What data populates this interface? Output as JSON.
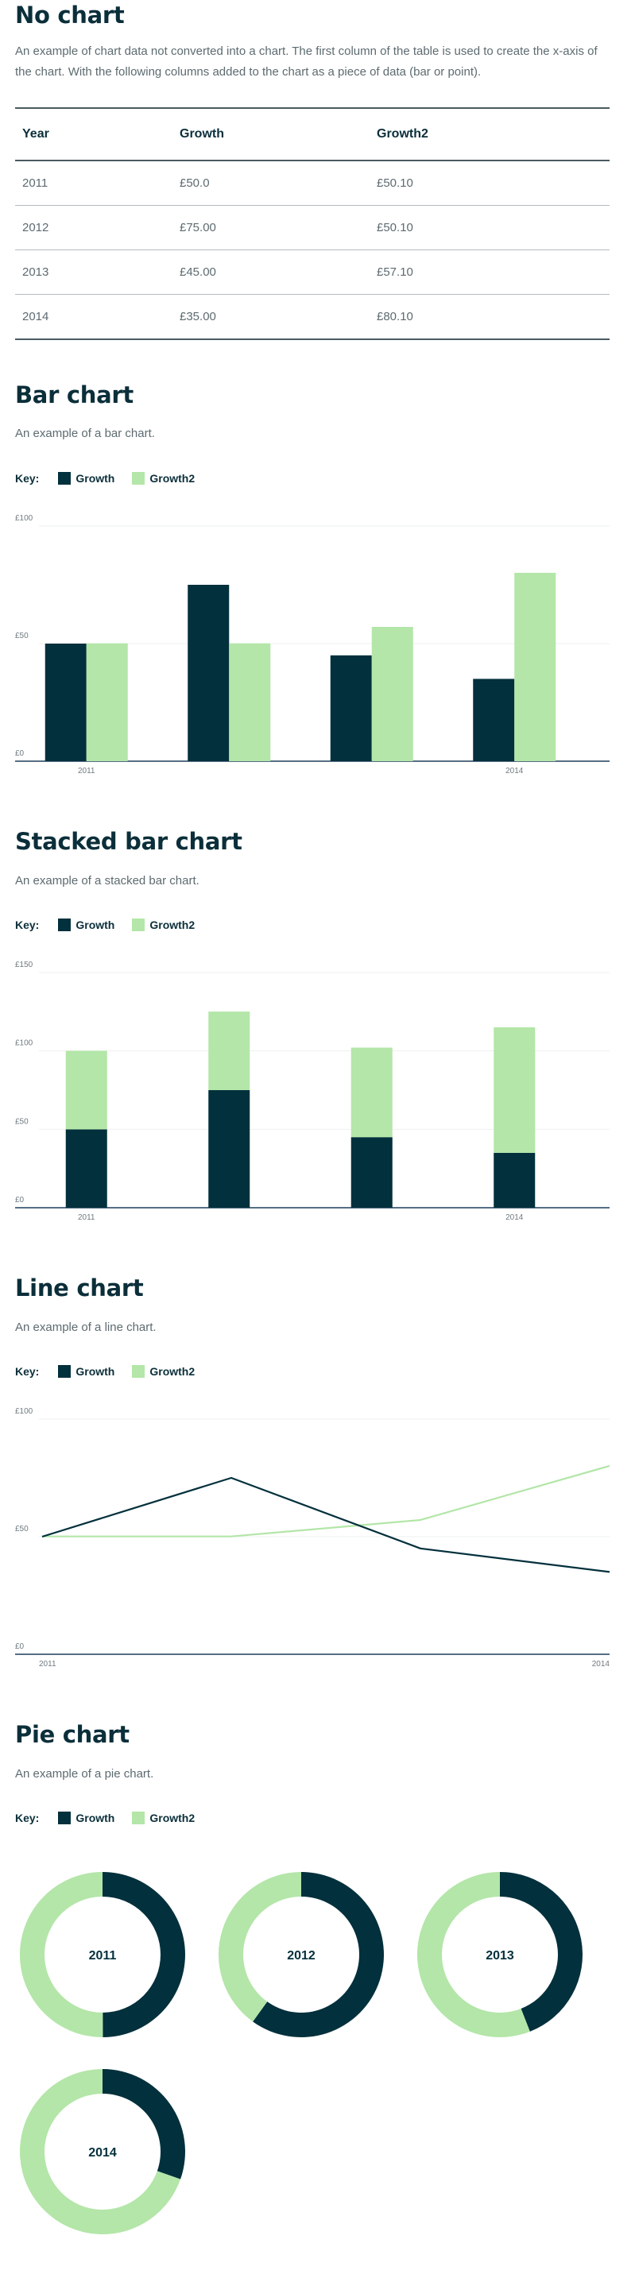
{
  "colors": {
    "growth": "#02303c",
    "growth2": "#b3e6a8",
    "axis": "#1f3e5c",
    "grid": "#eef0f1",
    "tick": "#6f7a7f"
  },
  "no_chart": {
    "title": "No chart",
    "description": "An example of chart data not converted into a chart. The first column of the table is used to create the x-axis of the chart. With the following columns added to the chart as a piece of data (bar or point).",
    "headers": [
      "Year",
      "Growth",
      "Growth2"
    ],
    "rows": [
      [
        "2011",
        "£50.0",
        "£50.10"
      ],
      [
        "2012",
        "£75.00",
        "£50.10"
      ],
      [
        "2013",
        "£45.00",
        "£57.10"
      ],
      [
        "2014",
        "£35.00",
        "£80.10"
      ]
    ]
  },
  "key": {
    "label": "Key:",
    "growth": "Growth",
    "growth2": "Growth2"
  },
  "bar": {
    "title": "Bar chart",
    "description": "An example of a bar chart."
  },
  "stacked": {
    "title": "Stacked bar chart",
    "description": "An example of a stacked bar chart."
  },
  "line": {
    "title": "Line chart",
    "description": "An example of a line chart."
  },
  "pie": {
    "title": "Pie chart",
    "description": "An example of a pie chart."
  },
  "chart_data": [
    {
      "type": "bar",
      "categories": [
        "2011",
        "2012",
        "2013",
        "2014"
      ],
      "tick_labels": [
        "2011",
        "",
        "",
        "2014"
      ],
      "series": [
        {
          "name": "Growth",
          "values": [
            50,
            75,
            45,
            35
          ]
        },
        {
          "name": "Growth2",
          "values": [
            50.1,
            50.1,
            57.1,
            80.1
          ]
        }
      ],
      "yticks": [
        "£0",
        "£50",
        "£100"
      ],
      "ylim": [
        0,
        100
      ]
    },
    {
      "type": "bar",
      "stacked": true,
      "categories": [
        "2011",
        "2012",
        "2013",
        "2014"
      ],
      "tick_labels": [
        "2011",
        "",
        "",
        "2014"
      ],
      "series": [
        {
          "name": "Growth",
          "values": [
            50,
            75,
            45,
            35
          ]
        },
        {
          "name": "Growth2",
          "values": [
            50.1,
            50.1,
            57.1,
            80.1
          ]
        }
      ],
      "yticks": [
        "£0",
        "£50",
        "£100",
        "£150"
      ],
      "ylim": [
        0,
        150
      ]
    },
    {
      "type": "line",
      "categories": [
        "2011",
        "2012",
        "2013",
        "2014"
      ],
      "tick_labels": [
        "2011",
        "",
        "",
        "2014"
      ],
      "series": [
        {
          "name": "Growth",
          "values": [
            50,
            75,
            45,
            35
          ]
        },
        {
          "name": "Growth2",
          "values": [
            50.1,
            50.1,
            57.1,
            80.1
          ]
        }
      ],
      "yticks": [
        "£0",
        "£50",
        "£100"
      ],
      "ylim": [
        0,
        100
      ]
    },
    {
      "type": "pie",
      "pies": [
        {
          "label": "2011",
          "values": [
            50,
            50.1
          ]
        },
        {
          "label": "2012",
          "values": [
            75,
            50.1
          ]
        },
        {
          "label": "2013",
          "values": [
            45,
            57.1
          ]
        },
        {
          "label": "2014",
          "values": [
            35,
            80.1
          ]
        }
      ],
      "series_names": [
        "Growth",
        "Growth2"
      ]
    }
  ]
}
